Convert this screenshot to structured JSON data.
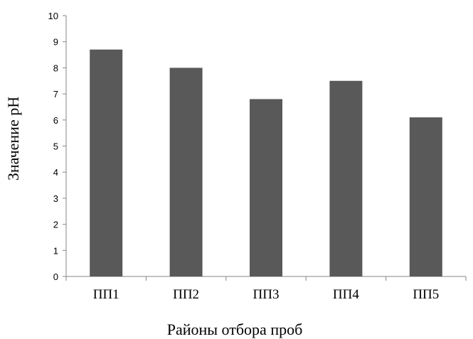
{
  "chart_data": {
    "type": "bar",
    "categories": [
      "ПП1",
      "ПП2",
      "ПП3",
      "ПП4",
      "ПП5"
    ],
    "values": [
      8.7,
      8.0,
      6.8,
      7.5,
      6.1
    ],
    "title": "",
    "xlabel": "Районы отбора проб",
    "ylabel": "Значение pH",
    "ylim": [
      0,
      10
    ],
    "yticks": [
      "0",
      "1",
      "2",
      "3",
      "4",
      "5",
      "6",
      "7",
      "8",
      "9",
      "10"
    ],
    "grid": false,
    "legend": "none",
    "bar_color": "#595959",
    "axis_color": "#868686"
  }
}
